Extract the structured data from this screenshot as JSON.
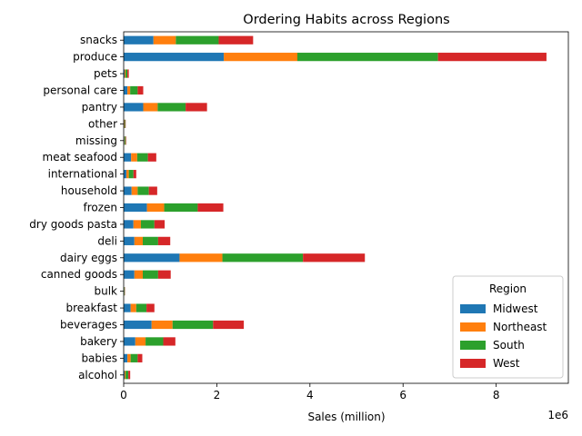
{
  "chart_data": {
    "type": "bar",
    "orientation": "horizontal",
    "stacked": true,
    "title": "Ordering Habits across Regions",
    "xlabel": "Sales (million)",
    "ylabel": "",
    "x_offset_label": "1e6",
    "x_tick_labels": [
      "0",
      "2",
      "4",
      "6",
      "8"
    ],
    "x_tick_values": [
      0,
      2000000,
      4000000,
      6000000,
      8000000
    ],
    "xlim": [
      0,
      9550000
    ],
    "categories": [
      "alcohol",
      "babies",
      "bakery",
      "beverages",
      "breakfast",
      "bulk",
      "canned goods",
      "dairy eggs",
      "deli",
      "dry goods pasta",
      "frozen",
      "household",
      "international",
      "meat seafood",
      "missing",
      "other",
      "pantry",
      "personal care",
      "pets",
      "produce",
      "snacks"
    ],
    "legend_title": "Region",
    "legend_position": "lower right",
    "series": [
      {
        "name": "Midwest",
        "color": "#1f77b4",
        "values": [
          20000,
          80000,
          250000,
          600000,
          150000,
          10000,
          230000,
          1200000,
          230000,
          210000,
          500000,
          170000,
          60000,
          160000,
          15000,
          10000,
          420000,
          80000,
          20000,
          2150000,
          640000
        ]
      },
      {
        "name": "Northeast",
        "color": "#ff7f0e",
        "values": [
          20000,
          70000,
          220000,
          450000,
          120000,
          5000,
          180000,
          920000,
          180000,
          160000,
          370000,
          130000,
          50000,
          130000,
          10000,
          8000,
          310000,
          60000,
          20000,
          1580000,
          480000
        ]
      },
      {
        "name": "South",
        "color": "#2ca02c",
        "values": [
          60000,
          150000,
          380000,
          870000,
          220000,
          10000,
          330000,
          1730000,
          330000,
          290000,
          720000,
          240000,
          100000,
          230000,
          20000,
          15000,
          600000,
          160000,
          40000,
          3020000,
          920000
        ]
      },
      {
        "name": "West",
        "color": "#d62728",
        "values": [
          40000,
          100000,
          260000,
          660000,
          170000,
          5000,
          270000,
          1330000,
          260000,
          220000,
          550000,
          180000,
          60000,
          180000,
          10000,
          10000,
          460000,
          120000,
          30000,
          2330000,
          740000
        ]
      }
    ]
  }
}
